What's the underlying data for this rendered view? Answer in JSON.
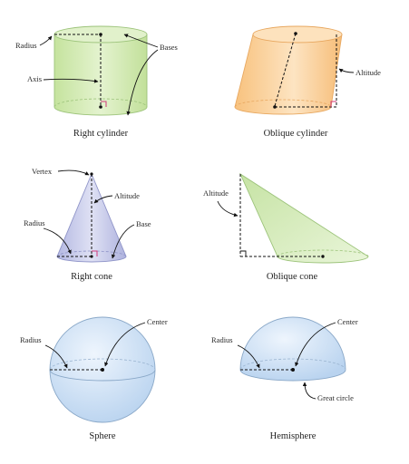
{
  "figures": {
    "right_cylinder": {
      "caption": "Right cylinder",
      "labels": {
        "radius": "Radius",
        "axis": "Axis",
        "bases": "Bases"
      },
      "colors": {
        "fill": "#d7edb8",
        "edge": "#9cc37a"
      }
    },
    "oblique_cylinder": {
      "caption": "Oblique cylinder",
      "labels": {
        "altitude": "Altitude"
      },
      "colors": {
        "fill": "#fbd7a6",
        "edge": "#e8a860"
      }
    },
    "right_cone": {
      "caption": "Right cone",
      "labels": {
        "vertex": "Vertex",
        "altitude": "Altitude",
        "radius": "Radius",
        "base": "Base"
      },
      "colors": {
        "fill": "#c9cbe8",
        "edge": "#8f94c8"
      }
    },
    "oblique_cone": {
      "caption": "Oblique cone",
      "labels": {
        "altitude": "Altitude"
      },
      "colors": {
        "fill": "#d8eec0",
        "edge": "#9cc37a"
      }
    },
    "sphere": {
      "caption": "Sphere",
      "labels": {
        "radius": "Radius",
        "center": "Center"
      },
      "colors": {
        "fill": "#cfe1f5",
        "edge": "#8aa8c8"
      }
    },
    "hemisphere": {
      "caption": "Hemisphere",
      "labels": {
        "radius": "Radius",
        "center": "Center",
        "great_circle": "Great circle"
      },
      "colors": {
        "fill": "#cfe1f5",
        "edge": "#8aa8c8"
      }
    }
  }
}
